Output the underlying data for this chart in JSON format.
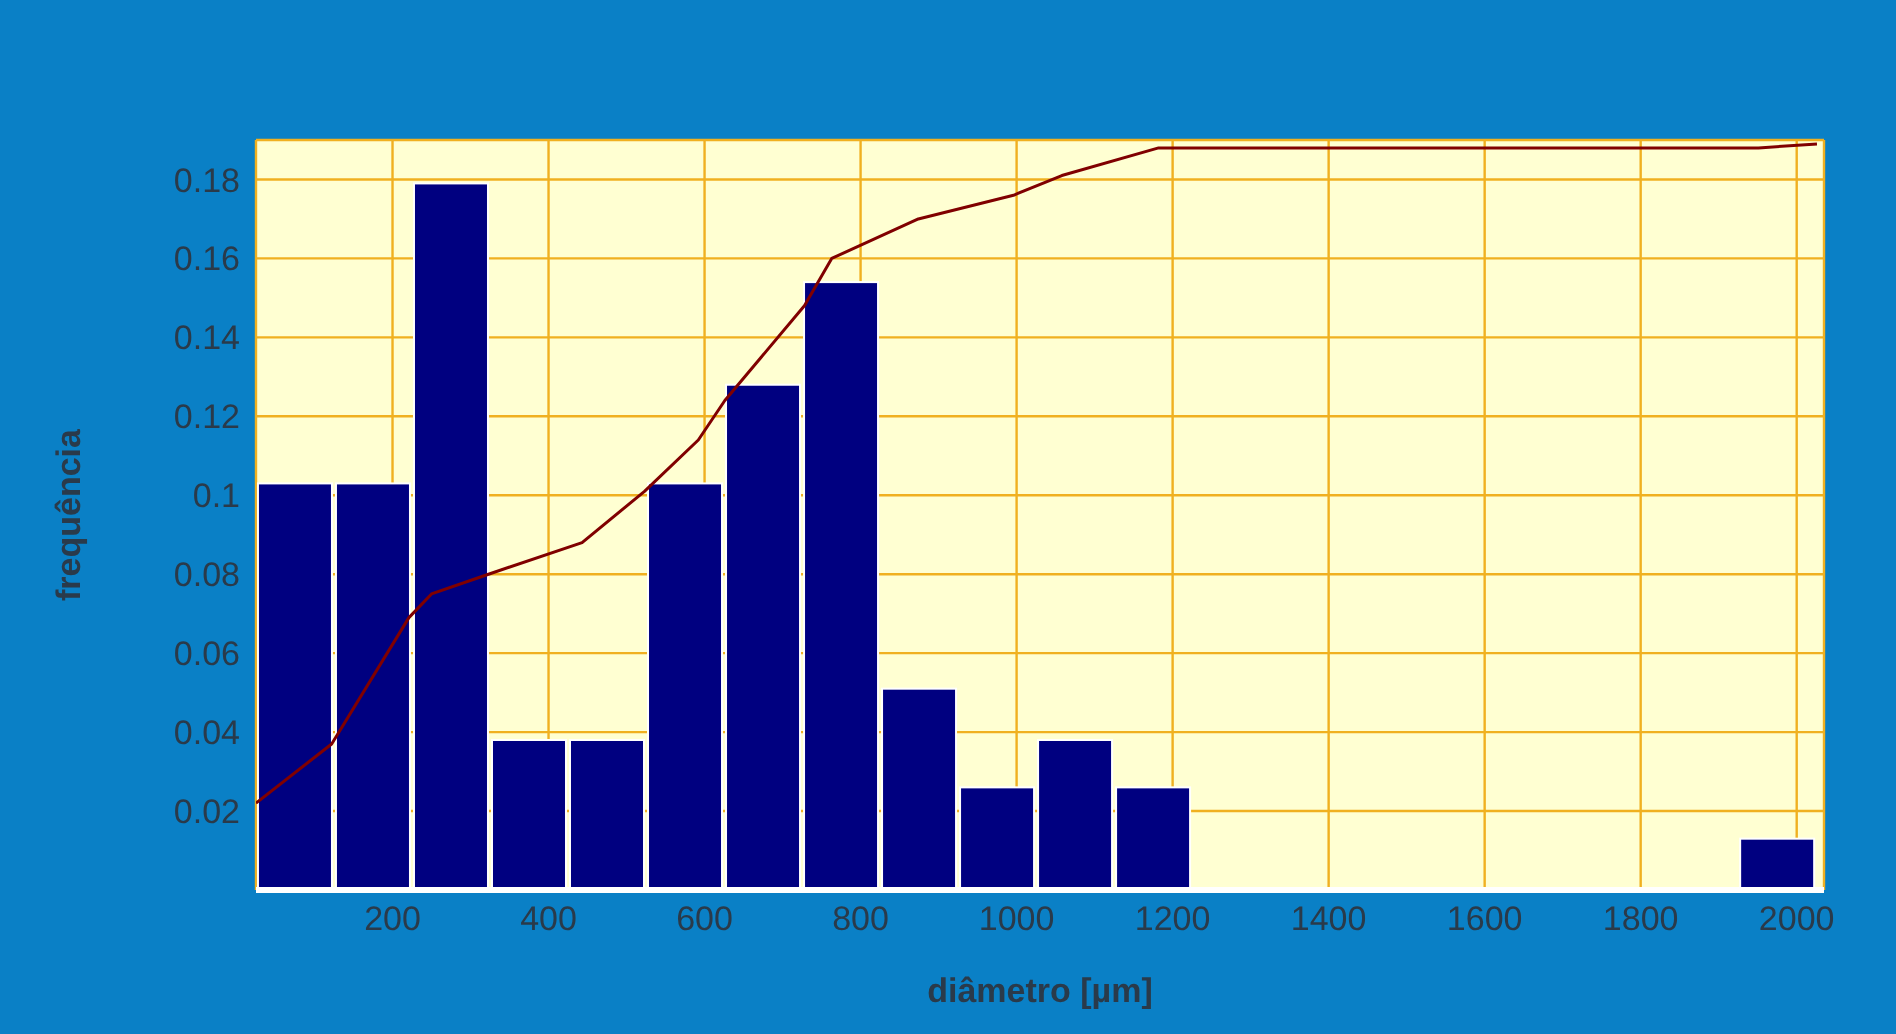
{
  "chart_data": {
    "type": "histogram",
    "xlabel": "diâmetro  [µm]",
    "ylabel": "frequência",
    "bins": [
      25,
      125,
      225,
      325,
      425,
      525,
      625,
      725,
      825,
      925,
      1025,
      1125,
      1225,
      1325,
      1425,
      1525,
      1625,
      1725,
      1825,
      1925,
      2025
    ],
    "values": [
      0.103,
      0.103,
      0.179,
      0.038,
      0.038,
      0.103,
      0.128,
      0.154,
      0.051,
      0.026,
      0.038,
      0.026,
      0,
      0,
      0,
      0,
      0,
      0,
      0,
      0.013
    ],
    "color": "#000080",
    "series": [
      {
        "type": "line",
        "color": "#800000",
        "x": [
          25,
          122,
          221,
          250,
          323,
          443,
          523,
          592,
          626,
          728,
          763,
          874,
          996,
          1058,
          1182,
          1951,
          2026
        ],
        "values": [
          0.022,
          0.037,
          0.069,
          0.075,
          0.08,
          0.088,
          0.101,
          0.114,
          0.124,
          0.148,
          0.16,
          0.17,
          0.176,
          0.181,
          0.188,
          0.188,
          0.189
        ]
      }
    ],
    "xlim": [
      25,
      2035
    ],
    "xticks": [
      200,
      400,
      600,
      800,
      1000,
      1200,
      1400,
      1600,
      1800,
      2000
    ],
    "ylim": [
      0,
      0.19
    ],
    "yticks": [
      0.02,
      0.04,
      0.06,
      0.08,
      0.1,
      0.12,
      0.14,
      0.16,
      0.18
    ],
    "grid": true,
    "legend": false,
    "marker": "none"
  }
}
